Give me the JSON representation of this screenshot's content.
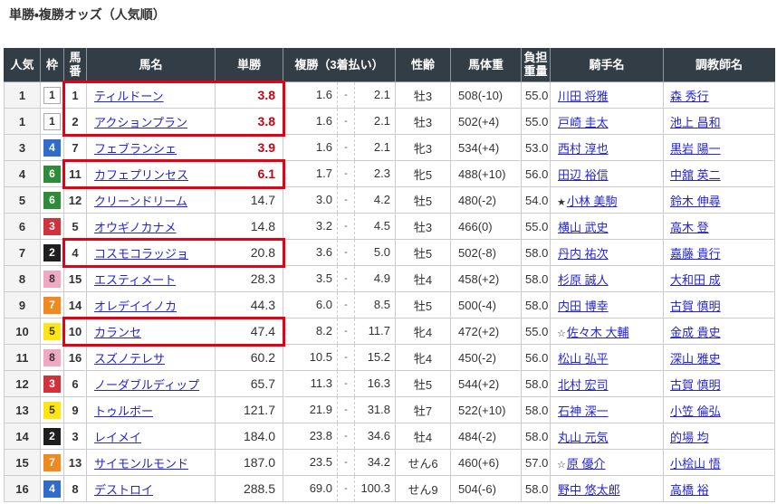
{
  "page": {
    "title": "単勝・複勝オッズ（人気順）"
  },
  "colors": {
    "header_bg": "#333d46",
    "link_blue": "#2525d4",
    "hot_odds_red": "#cc0011",
    "highlight_border_red": "#e60014",
    "frame_colors": {
      "1": "#ffffff",
      "2": "#1e1e1e",
      "3": "#d0333b",
      "4": "#2f6ccc",
      "5": "#ffe613",
      "6": "#2e8b3a",
      "7": "#f18a1e",
      "8": "#f2a7c3"
    }
  },
  "table": {
    "headers": {
      "rank": "人気",
      "frame": "枠",
      "number": "馬番",
      "name": "馬名",
      "win": "単勝",
      "place": "複勝（3着払い）",
      "sex_age": "性齢",
      "weight": "馬体重",
      "load": "負担\n重量",
      "jockey": "騎手名",
      "trainer": "調教師名"
    },
    "rows": [
      {
        "rank": "1",
        "frame": 1,
        "number": "1",
        "name": "ティルドーン",
        "win": "3.8",
        "win_hot": true,
        "place_low": "1.6",
        "place_high": "2.1",
        "sex_age": "牡3",
        "weight": "508(-10)",
        "load": "55.0",
        "jockey_prefix": "",
        "jockey": "川田 将雅",
        "trainer": "森 秀行",
        "highlight": true
      },
      {
        "rank": "1",
        "frame": 1,
        "number": "2",
        "name": "アクションプラン",
        "win": "3.8",
        "win_hot": true,
        "place_low": "1.6",
        "place_high": "2.1",
        "sex_age": "牡3",
        "weight": "502(+4)",
        "load": "55.0",
        "jockey_prefix": "",
        "jockey": "戸崎 圭太",
        "trainer": "池上 昌和",
        "highlight": true
      },
      {
        "rank": "3",
        "frame": 4,
        "number": "7",
        "name": "フェブランシェ",
        "win": "3.9",
        "win_hot": true,
        "place_low": "1.6",
        "place_high": "2.1",
        "sex_age": "牝3",
        "weight": "534(+4)",
        "load": "53.0",
        "jockey_prefix": "",
        "jockey": "西村 淳也",
        "trainer": "黒岩 陽一",
        "highlight": false
      },
      {
        "rank": "4",
        "frame": 6,
        "number": "11",
        "name": "カフェプリンセス",
        "win": "6.1",
        "win_hot": true,
        "place_low": "1.7",
        "place_high": "2.3",
        "sex_age": "牝5",
        "weight": "488(+10)",
        "load": "56.0",
        "jockey_prefix": "",
        "jockey": "田辺 裕信",
        "trainer": "中舘 英二",
        "highlight": true
      },
      {
        "rank": "5",
        "frame": 6,
        "number": "12",
        "name": "クリーンドリーム",
        "win": "14.7",
        "win_hot": false,
        "place_low": "3.0",
        "place_high": "4.2",
        "sex_age": "牡5",
        "weight": "480(-2)",
        "load": "54.0",
        "jockey_prefix": "★",
        "jockey": "小林 美駒",
        "trainer": "鈴木 伸尋",
        "highlight": false
      },
      {
        "rank": "6",
        "frame": 3,
        "number": "5",
        "name": "オウギノカナメ",
        "win": "14.8",
        "win_hot": false,
        "place_low": "3.2",
        "place_high": "4.5",
        "sex_age": "牡3",
        "weight": "466(0)",
        "load": "55.0",
        "jockey_prefix": "",
        "jockey": "横山 武史",
        "trainer": "高木 登",
        "highlight": false
      },
      {
        "rank": "7",
        "frame": 2,
        "number": "4",
        "name": "コスモコラッジョ",
        "win": "20.8",
        "win_hot": false,
        "place_low": "3.6",
        "place_high": "5.0",
        "sex_age": "牡5",
        "weight": "502(-8)",
        "load": "58.0",
        "jockey_prefix": "",
        "jockey": "丹内 祐次",
        "trainer": "嘉藤 貴行",
        "highlight": true
      },
      {
        "rank": "8",
        "frame": 8,
        "number": "15",
        "name": "エスティメート",
        "win": "28.3",
        "win_hot": false,
        "place_low": "3.5",
        "place_high": "4.9",
        "sex_age": "牡4",
        "weight": "458(+2)",
        "load": "58.0",
        "jockey_prefix": "",
        "jockey": "杉原 誠人",
        "trainer": "大和田 成",
        "highlight": false
      },
      {
        "rank": "9",
        "frame": 7,
        "number": "14",
        "name": "オレデイイノカ",
        "win": "44.3",
        "win_hot": false,
        "place_low": "6.0",
        "place_high": "8.5",
        "sex_age": "牡5",
        "weight": "500(-4)",
        "load": "58.0",
        "jockey_prefix": "",
        "jockey": "内田 博幸",
        "trainer": "古賀 慎明",
        "highlight": false
      },
      {
        "rank": "10",
        "frame": 5,
        "number": "10",
        "name": "カランセ",
        "win": "47.4",
        "win_hot": false,
        "place_low": "8.2",
        "place_high": "11.7",
        "sex_age": "牝4",
        "weight": "472(+2)",
        "load": "55.0",
        "jockey_prefix": "☆",
        "jockey": "佐々木 大輔",
        "trainer": "金成 貴史",
        "highlight": true
      },
      {
        "rank": "11",
        "frame": 8,
        "number": "16",
        "name": "スズノテレサ",
        "win": "60.2",
        "win_hot": false,
        "place_low": "10.5",
        "place_high": "15.2",
        "sex_age": "牝4",
        "weight": "450(-2)",
        "load": "56.0",
        "jockey_prefix": "",
        "jockey": "松山 弘平",
        "trainer": "深山 雅史",
        "highlight": false
      },
      {
        "rank": "12",
        "frame": 3,
        "number": "6",
        "name": "ノーダブルディップ",
        "win": "65.7",
        "win_hot": false,
        "place_low": "11.3",
        "place_high": "16.3",
        "sex_age": "牡5",
        "weight": "544(+2)",
        "load": "58.0",
        "jockey_prefix": "",
        "jockey": "北村 宏司",
        "trainer": "古賀 慎明",
        "highlight": false
      },
      {
        "rank": "13",
        "frame": 5,
        "number": "9",
        "name": "トゥルボー",
        "win": "121.7",
        "win_hot": false,
        "place_low": "21.9",
        "place_high": "31.8",
        "sex_age": "牡7",
        "weight": "522(+10)",
        "load": "58.0",
        "jockey_prefix": "",
        "jockey": "石神 深一",
        "trainer": "小笠 倫弘",
        "highlight": false
      },
      {
        "rank": "14",
        "frame": 2,
        "number": "3",
        "name": "レイメイ",
        "win": "184.0",
        "win_hot": false,
        "place_low": "23.8",
        "place_high": "34.6",
        "sex_age": "牡4",
        "weight": "484(-2)",
        "load": "58.0",
        "jockey_prefix": "",
        "jockey": "丸山 元気",
        "trainer": "的場 均",
        "highlight": false
      },
      {
        "rank": "15",
        "frame": 7,
        "number": "13",
        "name": "サイモンルモンド",
        "win": "187.0",
        "win_hot": false,
        "place_low": "23.5",
        "place_high": "34.2",
        "sex_age": "せん6",
        "weight": "460(+6)",
        "load": "57.0",
        "jockey_prefix": "☆",
        "jockey": "原 優介",
        "trainer": "小桧山 悟",
        "highlight": false
      },
      {
        "rank": "16",
        "frame": 4,
        "number": "8",
        "name": "デストロイ",
        "win": "288.5",
        "win_hot": false,
        "place_low": "69.0",
        "place_high": "100.3",
        "sex_age": "せん9",
        "weight": "504(-6)",
        "load": "58.0",
        "jockey_prefix": "",
        "jockey": "野中 悠太郎",
        "trainer": "高橋 裕",
        "highlight": false
      }
    ]
  }
}
